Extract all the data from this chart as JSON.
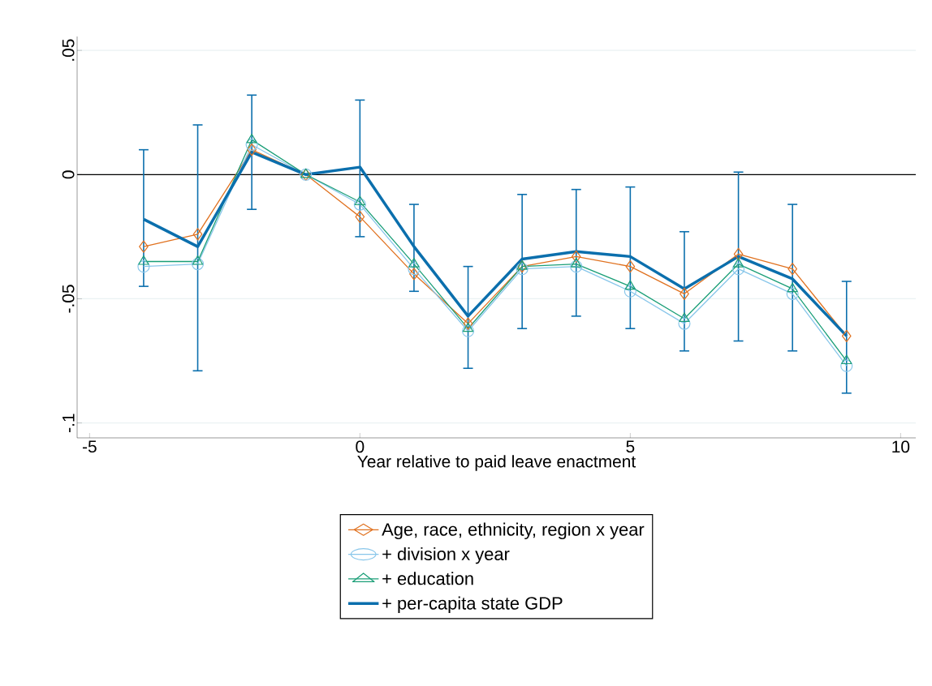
{
  "chart_data": {
    "type": "line",
    "xlabel": "Year relative to paid leave enactment",
    "x": [
      -4,
      -3,
      -2,
      -1,
      0,
      1,
      2,
      3,
      4,
      5,
      6,
      7,
      8,
      9
    ],
    "series": [
      {
        "name": "Age, race, ethnicity, region x year",
        "color": "#e0711f",
        "marker": "diamond",
        "values": [
          -0.029,
          -0.024,
          0.01,
          0,
          -0.017,
          -0.04,
          -0.06,
          -0.037,
          -0.033,
          -0.037,
          -0.048,
          -0.032,
          -0.038,
          -0.065
        ]
      },
      {
        "name": "+ division x year",
        "color": "#88c6ea",
        "marker": "circle",
        "values": [
          -0.037,
          -0.036,
          0.012,
          0,
          -0.012,
          -0.038,
          -0.063,
          -0.038,
          -0.037,
          -0.047,
          -0.06,
          -0.038,
          -0.048,
          -0.077
        ]
      },
      {
        "name": "+ education",
        "color": "#1a9e77",
        "marker": "triangle",
        "values": [
          -0.035,
          -0.035,
          0.014,
          0,
          -0.011,
          -0.036,
          -0.062,
          -0.037,
          -0.036,
          -0.045,
          -0.058,
          -0.036,
          -0.046,
          -0.075
        ]
      },
      {
        "name": "+ per-capita state GDP",
        "color": "#0b6fad",
        "marker": "none",
        "values": [
          -0.018,
          -0.029,
          0.009,
          0,
          0.003,
          -0.029,
          -0.057,
          -0.034,
          -0.031,
          -0.033,
          -0.046,
          -0.033,
          -0.042,
          -0.065
        ],
        "errors": [
          [
            -0.045,
            0.01
          ],
          [
            -0.079,
            0.02
          ],
          [
            -0.014,
            0.032
          ],
          null,
          [
            -0.025,
            0.03
          ],
          [
            -0.047,
            -0.012
          ],
          [
            -0.078,
            -0.037
          ],
          [
            -0.062,
            -0.008
          ],
          [
            -0.057,
            -0.006
          ],
          [
            -0.062,
            -0.005
          ],
          [
            -0.071,
            -0.023
          ],
          [
            -0.067,
            0.001
          ],
          [
            -0.071,
            -0.012
          ],
          [
            -0.088,
            -0.043
          ]
        ]
      }
    ],
    "xlim": [
      -5.23,
      10.28
    ],
    "ylim": [
      -0.106,
      0.0556
    ],
    "xticks": [
      -5,
      0,
      5,
      10
    ],
    "yticks": [
      {
        "value": 0.05,
        "label": ".05"
      },
      {
        "value": 0,
        "label": "0"
      },
      {
        "value": -0.05,
        "label": "-.05"
      },
      {
        "value": -0.1,
        "label": "-.1"
      }
    ],
    "ref_lines": [
      {
        "axis": "y",
        "value": 0,
        "color": "#000000"
      }
    ],
    "grid": "y",
    "legend": "bottom"
  }
}
